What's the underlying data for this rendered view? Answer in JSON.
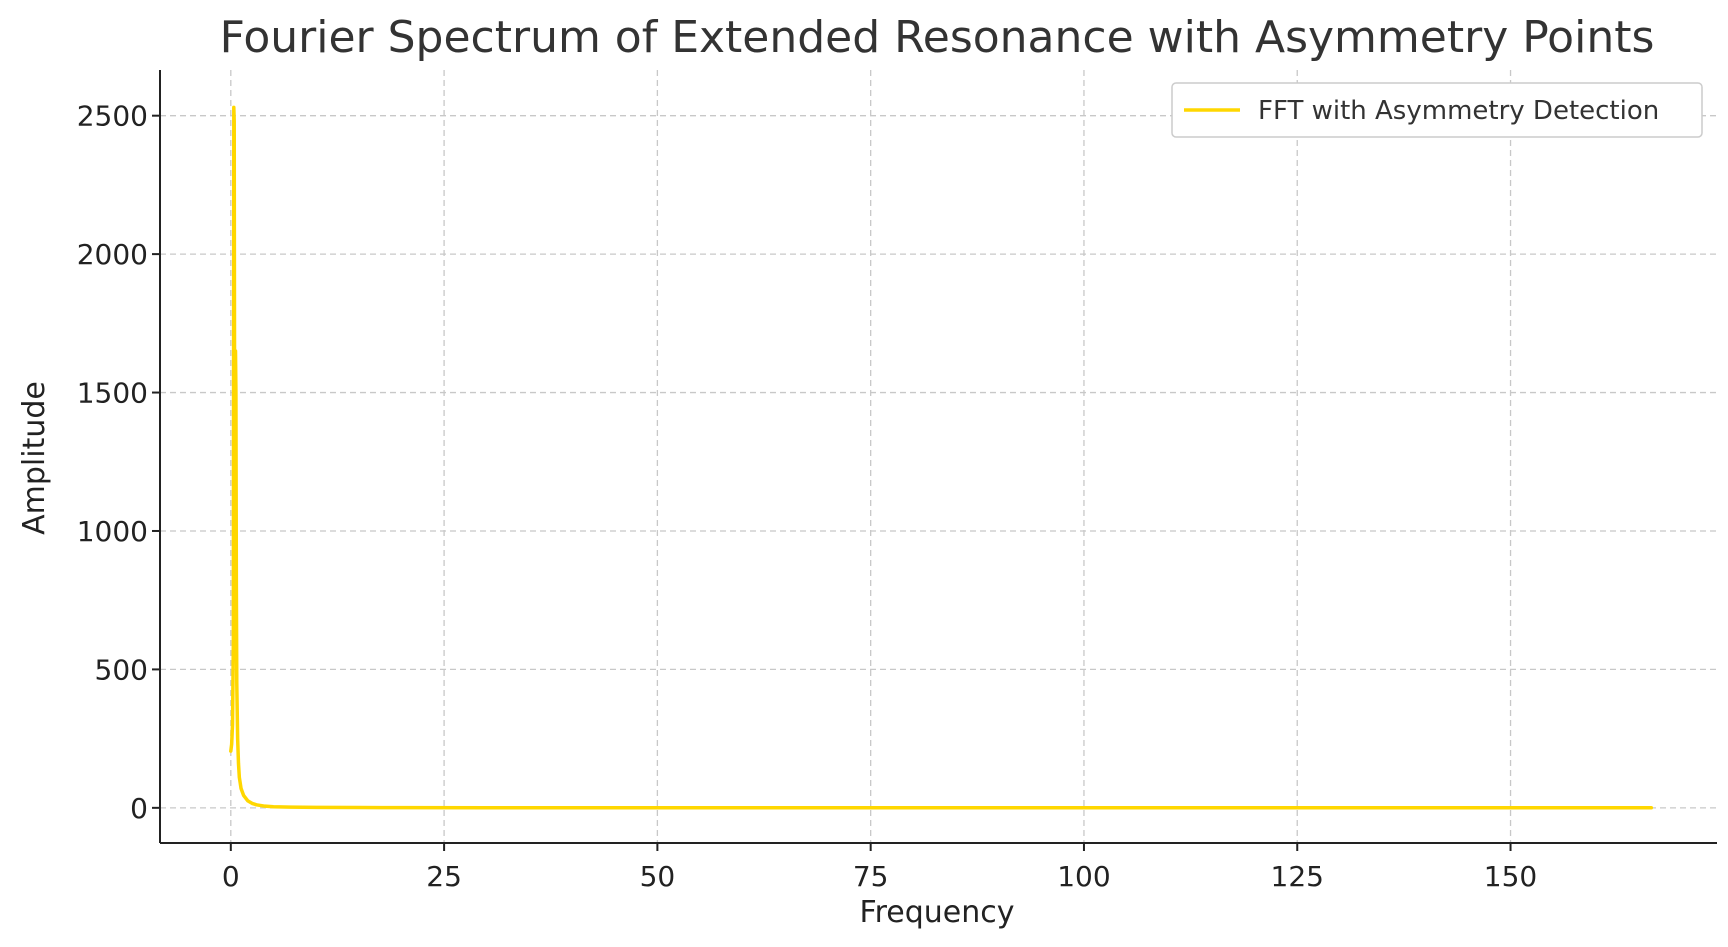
{
  "chart_data": {
    "type": "line",
    "title": "Fourier Spectrum of Extended Resonance with Asymmetry Points",
    "xlabel": "Frequency",
    "ylabel": "Amplitude",
    "xlim": [
      -8.3,
      174.2
    ],
    "ylim": [
      -127,
      2665
    ],
    "x_ticks": [
      0,
      25,
      50,
      75,
      100,
      125,
      150
    ],
    "y_ticks": [
      0,
      500,
      1000,
      1500,
      2000,
      2500
    ],
    "grid": true,
    "legend": {
      "placement": "top-right",
      "entries": [
        "FFT with Asymmetry Detection"
      ]
    },
    "series": [
      {
        "name": "FFT with Asymmetry Detection",
        "color": "#FFD700",
        "x": [
          0.0,
          0.1,
          0.2,
          0.3,
          0.35,
          0.4,
          0.45,
          0.5,
          0.55,
          0.6,
          0.65,
          0.7,
          0.8,
          0.9,
          1.0,
          1.2,
          1.5,
          2.0,
          2.5,
          3.0,
          4.0,
          5.0,
          7.0,
          10.0,
          15.0,
          20.0,
          30.0,
          50.0,
          75.0,
          100.0,
          125.0,
          150.0,
          166.5
        ],
        "values": [
          205,
          230,
          300,
          600,
          2530,
          2480,
          1300,
          700,
          1650,
          1500,
          800,
          450,
          250,
          160,
          110,
          70,
          45,
          25,
          16,
          11,
          6,
          4,
          2.5,
          1.5,
          1,
          0.8,
          0.5,
          0.3,
          0.2,
          0.15,
          0.1,
          0.1,
          0.1
        ]
      }
    ]
  }
}
